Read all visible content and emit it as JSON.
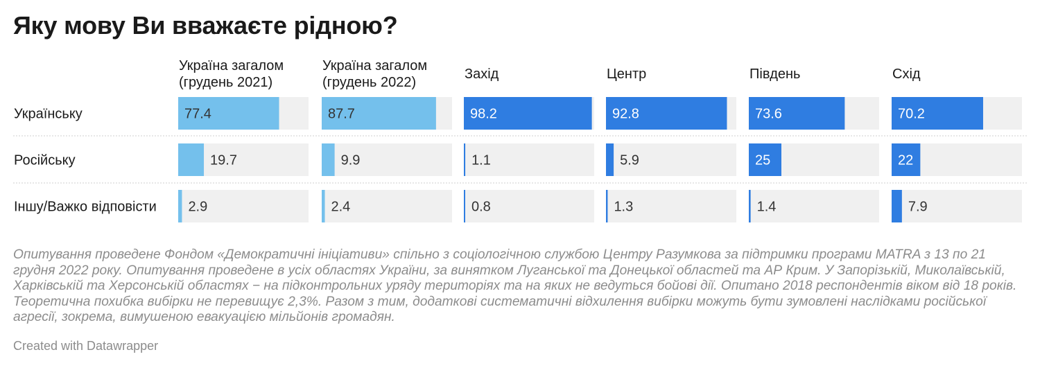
{
  "colors": {
    "ukraine_bar": "#74c0ec",
    "region_bar": "#2f7de1",
    "track": "#f0f0f0",
    "label_dark": "#333333",
    "label_light": "#ffffff",
    "separator": "#cfcfcf"
  },
  "chart_data": {
    "type": "bar",
    "title": "Яку мову Ви вважаєте рідною?",
    "xlim": [
      0,
      100
    ],
    "rows": [
      "Українську",
      "Російську",
      "Іншу/Важко відповісти"
    ],
    "columns": [
      {
        "label_lines": [
          "Україна загалом",
          "(грудень 2021)"
        ],
        "group": "ukraine",
        "values": [
          77.4,
          19.7,
          2.9
        ],
        "value_labels": [
          "77.4",
          "19.7",
          "2.9"
        ]
      },
      {
        "label_lines": [
          "Україна загалом",
          "(грудень 2022)"
        ],
        "group": "ukraine",
        "values": [
          87.7,
          9.9,
          2.4
        ],
        "value_labels": [
          "87.7",
          "9.9",
          "2.4"
        ]
      },
      {
        "label_lines": [
          "Захід"
        ],
        "group": "region",
        "values": [
          98.2,
          1.1,
          0.8
        ],
        "value_labels": [
          "98.2",
          "1.1",
          "0.8"
        ]
      },
      {
        "label_lines": [
          "Центр"
        ],
        "group": "region",
        "values": [
          92.8,
          5.9,
          1.3
        ],
        "value_labels": [
          "92.8",
          "5.9",
          "1.3"
        ]
      },
      {
        "label_lines": [
          "Південь"
        ],
        "group": "region",
        "values": [
          73.6,
          25,
          1.4
        ],
        "value_labels": [
          "73.6",
          "25",
          "1.4"
        ]
      },
      {
        "label_lines": [
          "Схід"
        ],
        "group": "region",
        "values": [
          70.2,
          22,
          7.9
        ],
        "value_labels": [
          "70.2",
          "22",
          "7.9"
        ]
      }
    ]
  },
  "notes": "Опитування проведене Фондом «Демократичні ініціативи» спільно з соціологічною службою Центру Разумкова за підтримки програми MATRA з 13 по 21 грудня 2022 року. Опитування проведене в усіх областях України, за винятком Луганської та Донецької областей та АР Крим. У Запорізькій, Миколаївській, Харківській та Херсонській областях − на підконтрольних уряду територіях та на яких не ведуться бойові дії. Опитано 2018 респондентів віком від 18 років. Теоретична похибка вибірки не перевищує 2,3%. Разом з тим, додаткові систематичні відхилення вибірки можуть бути зумовлені наслідками російської агресії, зокрема, вимушеною евакуацією мільйонів громадян.",
  "credit": "Created with Datawrapper"
}
